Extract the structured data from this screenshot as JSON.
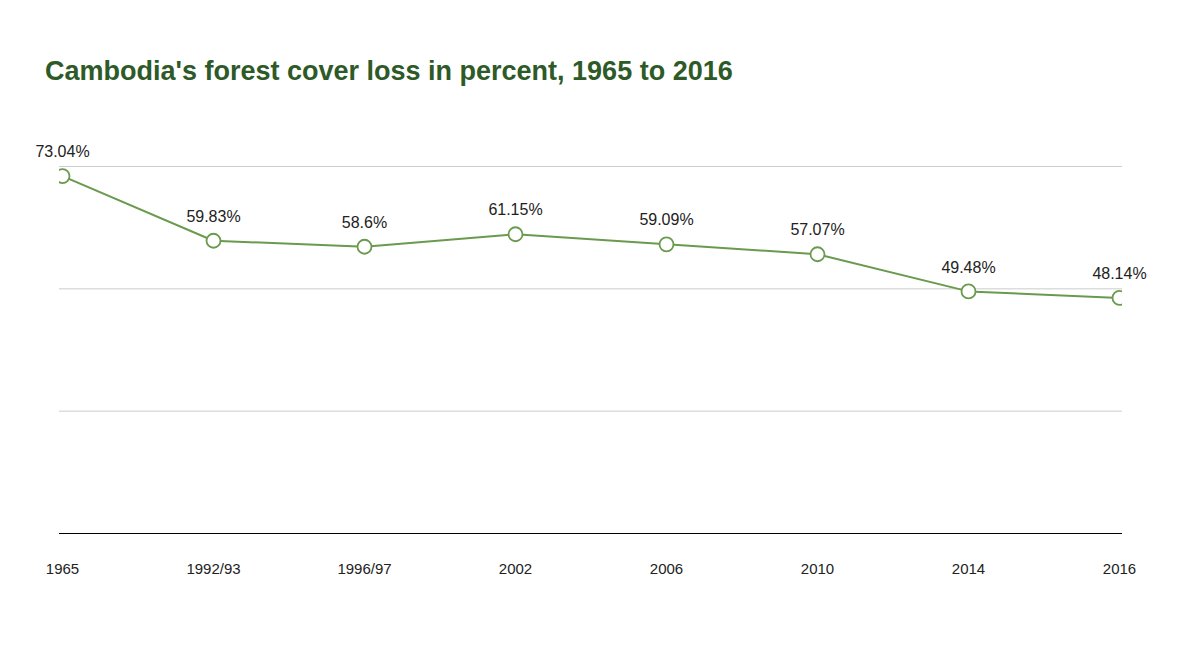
{
  "chart_data": {
    "type": "line",
    "title": "Cambodia's forest cover loss in percent, 1965 to 2016",
    "categories": [
      "1965",
      "1992/93",
      "1996/97",
      "2002",
      "2006",
      "2010",
      "2014",
      "2016"
    ],
    "values": [
      73.04,
      59.83,
      58.6,
      61.15,
      59.09,
      57.07,
      49.48,
      48.14
    ],
    "value_labels": [
      "73.04%",
      "59.83%",
      "58.6%",
      "61.15%",
      "59.09%",
      "57.07%",
      "49.48%",
      "48.14%"
    ],
    "color": "#6a9a4e",
    "ylim": [
      0,
      75
    ],
    "yticks": [
      0,
      25,
      50,
      75
    ],
    "grid": true,
    "data_labels": true,
    "tick_labels": "x",
    "marker": "circle",
    "line_style": "solid"
  }
}
